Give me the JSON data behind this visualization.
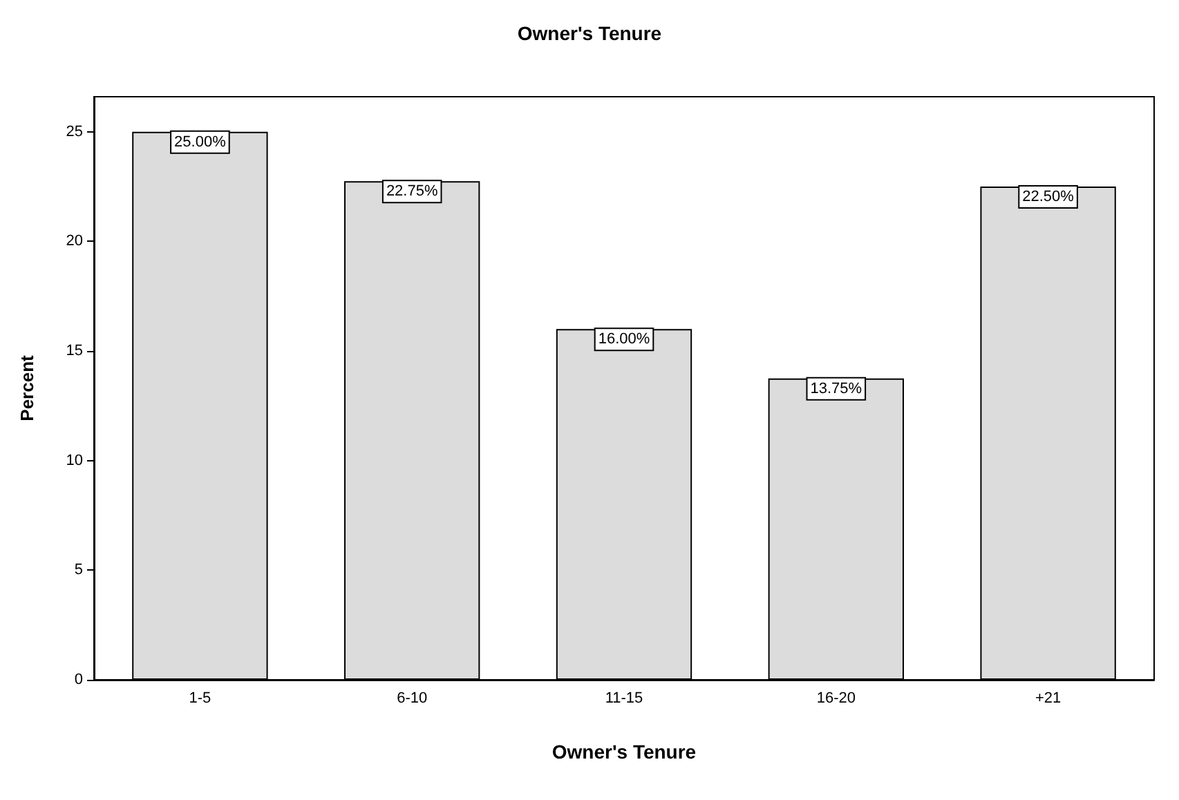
{
  "chart_data": {
    "type": "bar",
    "title": "Owner's Tenure",
    "xlabel": "Owner's Tenure",
    "ylabel": "Percent",
    "categories": [
      "1-5",
      "6-10",
      "11-15",
      "16-20",
      "+21"
    ],
    "values": [
      25.0,
      22.75,
      16.0,
      13.75,
      22.5
    ],
    "value_labels": [
      "25.00%",
      "22.75%",
      "16.00%",
      "13.75%",
      "22.50%"
    ],
    "color": "#dcdcdc",
    "ylim": [
      0,
      26.6
    ],
    "yticks": [
      0,
      5,
      10,
      15,
      20,
      25
    ],
    "grid": false
  }
}
